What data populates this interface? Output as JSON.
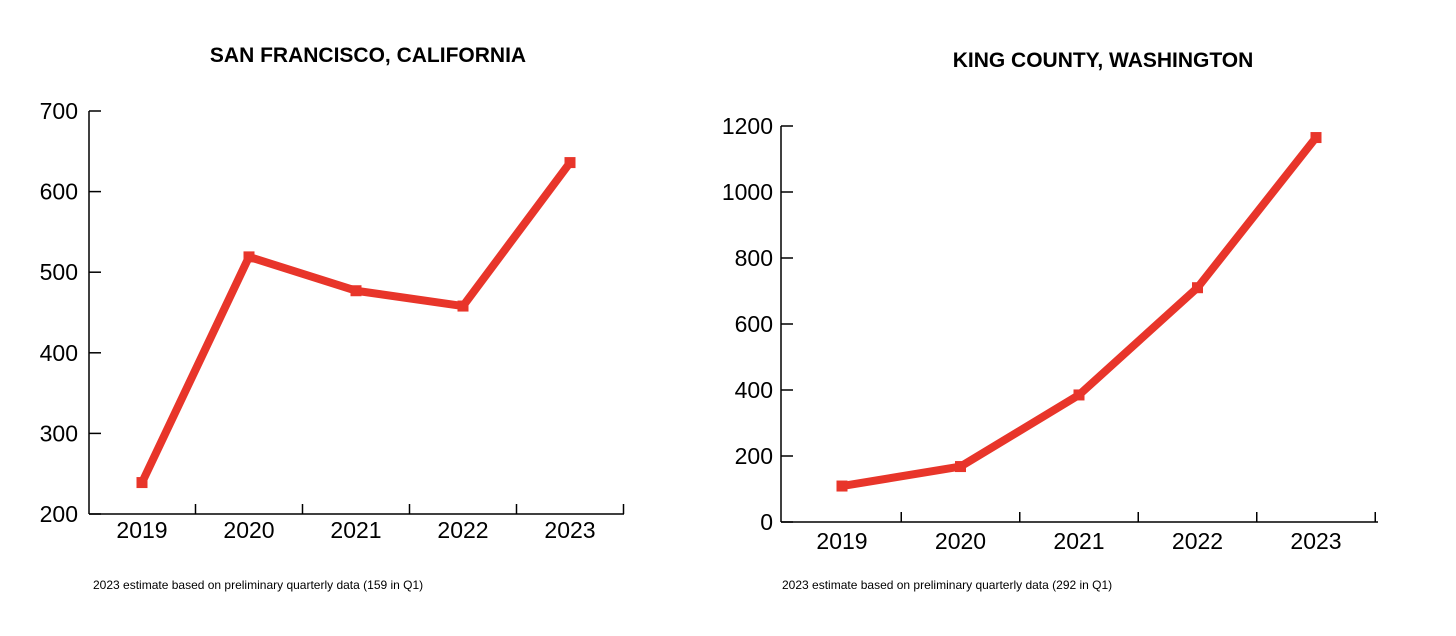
{
  "chart_data": [
    {
      "type": "line",
      "title": "SAN FRANCISCO, CALIFORNIA",
      "categories": [
        "2019",
        "2020",
        "2021",
        "2022",
        "2023"
      ],
      "series": [
        {
          "values": [
            239,
            519,
            477,
            458,
            636
          ]
        }
      ],
      "ylim": [
        200,
        700
      ],
      "yticks": [
        200,
        300,
        400,
        500,
        600,
        700
      ],
      "xlabel": "",
      "ylabel": "",
      "grid": false,
      "note": "2023 estimate based on preliminary quarterly data (159 in Q1)",
      "line_color": "#e8352a"
    },
    {
      "type": "line",
      "title": "KING COUNTY, WASHINGTON",
      "categories": [
        "2019",
        "2020",
        "2021",
        "2022",
        "2023"
      ],
      "series": [
        {
          "values": [
            109,
            168,
            385,
            710,
            1165
          ]
        }
      ],
      "ylim": [
        0,
        1200
      ],
      "yticks": [
        0,
        200,
        400,
        600,
        800,
        1000,
        1200
      ],
      "xlabel": "",
      "ylabel": "",
      "grid": false,
      "note": "2023 estimate based on preliminary quarterly data (292 in Q1)",
      "line_color": "#e8352a"
    }
  ]
}
